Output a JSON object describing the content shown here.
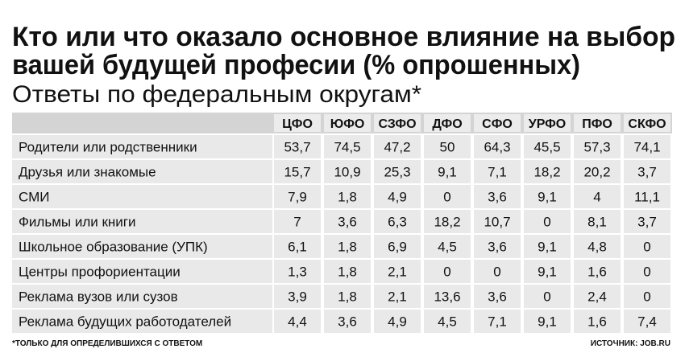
{
  "header": {
    "title_lines": [
      "Кто или что оказало основное влияние на выбор",
      "вашей будущей професии (% опрошенных)"
    ],
    "subtitle": "Ответы по федеральным округам*"
  },
  "table": {
    "columns": [
      "ЦФО",
      "ЮФО",
      "СЗФО",
      "ДФО",
      "СФО",
      "УРФО",
      "ПФО",
      "СКФО"
    ],
    "rows": [
      {
        "label": "Родители или родственники",
        "values": [
          "53,7",
          "74,5",
          "47,2",
          "50",
          "64,3",
          "45,5",
          "57,3",
          "74,1"
        ]
      },
      {
        "label": "Друзья или знакомые",
        "values": [
          "15,7",
          "10,9",
          "25,3",
          "9,1",
          "7,1",
          "18,2",
          "20,2",
          "3,7"
        ]
      },
      {
        "label": "СМИ",
        "values": [
          "7,9",
          "1,8",
          "4,9",
          "0",
          "3,6",
          "9,1",
          "4",
          "11,1"
        ]
      },
      {
        "label": "Фильмы или книги",
        "values": [
          "7",
          "3,6",
          "6,3",
          "18,2",
          "10,7",
          "0",
          "8,1",
          "3,7"
        ]
      },
      {
        "label": "Школьное образование (УПК)",
        "values": [
          "6,1",
          "1,8",
          "6,9",
          "4,5",
          "3,6",
          "9,1",
          "4,8",
          "0"
        ]
      },
      {
        "label": "Центры профориентации",
        "values": [
          "1,3",
          "1,8",
          "2,1",
          "0",
          "0",
          "9,1",
          "1,6",
          "0"
        ]
      },
      {
        "label": "Реклама вузов или сузов",
        "values": [
          "3,9",
          "1,8",
          "2,1",
          "13,6",
          "3,6",
          "0",
          "2,4",
          "0"
        ]
      },
      {
        "label": "Реклама будущих работодателей",
        "values": [
          "4,4",
          "3,6",
          "4,9",
          "4,5",
          "7,1",
          "9,1",
          "1,6",
          "7,4"
        ]
      }
    ]
  },
  "footer": {
    "note": "*ТОЛЬКО ДЛЯ ОПРЕДЕЛИВШИХСЯ С ОТВЕТОМ",
    "source": "ИСТОЧНИК: JOB.RU"
  }
}
